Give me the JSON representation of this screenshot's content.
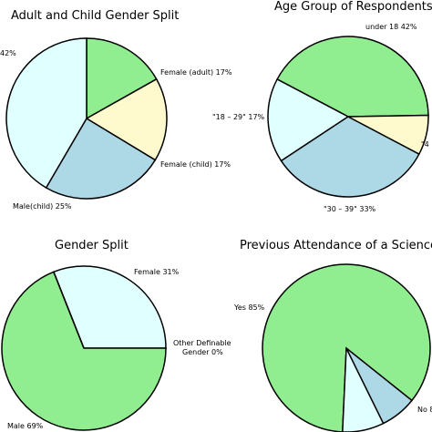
{
  "chart_data": [
    {
      "type": "pie",
      "title": "Adult and Child Gender Split",
      "slices": [
        {
          "label": "Female (adult) 17%",
          "value": 17,
          "color": "#90ee90"
        },
        {
          "label": "Female (child) 17%",
          "value": 17,
          "color": "#fffacd"
        },
        {
          "label": "Male(child) 25%",
          "value": 25,
          "color": "#add8e6"
        },
        {
          "label": "42%",
          "value": 42,
          "color": "#e0ffff"
        }
      ]
    },
    {
      "type": "pie",
      "title": "Age Group of Respondents",
      "slices": [
        {
          "label": "under 18 42%",
          "value": 42,
          "color": "#90ee90"
        },
        {
          "label": "\"18 – 29\" 17%",
          "value": 17,
          "color": "#e0ffff"
        },
        {
          "label": "\"30 – 39\" 33%",
          "value": 33,
          "color": "#add8e6"
        },
        {
          "label": "\"4",
          "value": 8,
          "color": "#fffacd"
        }
      ]
    },
    {
      "type": "pie",
      "title": "Gender Split",
      "slices": [
        {
          "label": "Female 31%",
          "value": 31,
          "color": "#e0ffff"
        },
        {
          "label": "Male 69%",
          "value": 69,
          "color": "#90ee90"
        },
        {
          "label": "Other Definable Gender 0%",
          "value": 0,
          "color": "#add8e6"
        }
      ]
    },
    {
      "type": "pie",
      "title": "Previous Attendance of a Science Ce",
      "slices": [
        {
          "label": "Yes 85%",
          "value": 85,
          "color": "#90ee90"
        },
        {
          "label": "No 8",
          "value": 8,
          "color": "#e0ffff"
        },
        {
          "label": "",
          "value": 7,
          "color": "#add8e6"
        }
      ]
    }
  ]
}
